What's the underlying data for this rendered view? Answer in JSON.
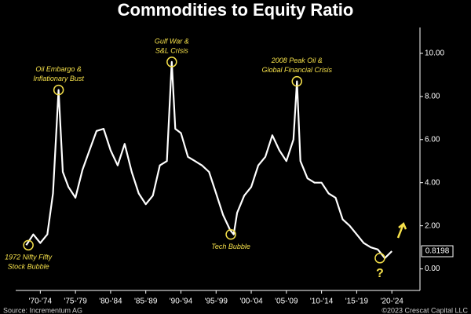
{
  "chart_data": {
    "type": "line",
    "title": "Commodities to Equity Ratio",
    "x": [
      1970,
      1971,
      1972,
      1973,
      1973.8,
      1974.6,
      1975.2,
      1976,
      1977,
      1978,
      1979,
      1980,
      1981,
      1982,
      1983,
      1984,
      1985,
      1986,
      1987,
      1988,
      1989,
      1990,
      1990.7,
      1991.2,
      1992,
      1993,
      1994,
      1995,
      1996,
      1997,
      1998,
      1999,
      1999.5,
      2000,
      2001,
      2002,
      2003,
      2004,
      2005,
      2006,
      2007,
      2008,
      2008.5,
      2009,
      2010,
      2011,
      2012,
      2013,
      2014,
      2015,
      2016,
      2017,
      2018,
      2019,
      2020,
      2021,
      2022
    ],
    "values": [
      1.1,
      1.6,
      1.2,
      1.6,
      3.5,
      8.3,
      4.5,
      3.8,
      3.3,
      4.6,
      5.5,
      6.4,
      6.5,
      5.5,
      4.8,
      5.8,
      4.5,
      3.5,
      3.0,
      3.4,
      4.8,
      5.0,
      9.6,
      6.5,
      6.3,
      5.2,
      5.0,
      4.8,
      4.5,
      3.5,
      2.5,
      1.8,
      1.6,
      2.6,
      3.4,
      3.8,
      4.8,
      5.2,
      6.2,
      5.5,
      5.0,
      6.0,
      8.7,
      5.0,
      4.2,
      4.0,
      4.0,
      3.5,
      3.3,
      2.3,
      2.0,
      1.6,
      1.2,
      1.0,
      0.9,
      0.5,
      0.8198
    ],
    "color": "#ffffff",
    "xlim": [
      1968.5,
      2026
    ],
    "xticks": [
      {
        "value": 1972,
        "label": "'70-'74"
      },
      {
        "value": 1977,
        "label": "'75-'79"
      },
      {
        "value": 1982,
        "label": "'80-'84"
      },
      {
        "value": 1987,
        "label": "'85-'89"
      },
      {
        "value": 1992,
        "label": "'90-'94"
      },
      {
        "value": 1997,
        "label": "'95-'99"
      },
      {
        "value": 2002,
        "label": "'00-'04"
      },
      {
        "value": 2007,
        "label": "'05-'09"
      },
      {
        "value": 2012,
        "label": "'10-'14"
      },
      {
        "value": 2017,
        "label": "'15-'19"
      },
      {
        "value": 2022,
        "label": "'20-'24"
      }
    ],
    "ylim": [
      -1,
      11.2
    ],
    "yticks": [
      {
        "value": 0,
        "label": "0.00"
      },
      {
        "value": 2,
        "label": "2.00"
      },
      {
        "value": 4,
        "label": "4.00"
      },
      {
        "value": 6,
        "label": "6.00"
      },
      {
        "value": 8,
        "label": "8.00"
      },
      {
        "value": 10,
        "label": "10.00"
      }
    ],
    "annotations": [
      {
        "text": [
          "1972 Nifty Fifty",
          "Stock Bubble"
        ],
        "x": 1970.3,
        "y": 1.1
      },
      {
        "text": [
          "Oil Embargo &",
          "Inflationary Bust"
        ],
        "x": 1974.6,
        "y": 8.3
      },
      {
        "text": [
          "Gulf War &",
          "S&L Crisis"
        ],
        "x": 1990.7,
        "y": 9.6
      },
      {
        "text": [
          "Tech Bubble"
        ],
        "x": 1999.1,
        "y": 1.6
      },
      {
        "text": [
          "2008 Peak Oil &",
          "Global Financial Crisis"
        ],
        "x": 2008.5,
        "y": 8.7
      },
      {
        "text": [
          "?"
        ],
        "x": 2020.3,
        "y": 0.5
      }
    ],
    "footer": [
      "Source: Incrementum AG",
      "©2023 Crescat Capital LLC"
    ]
  }
}
